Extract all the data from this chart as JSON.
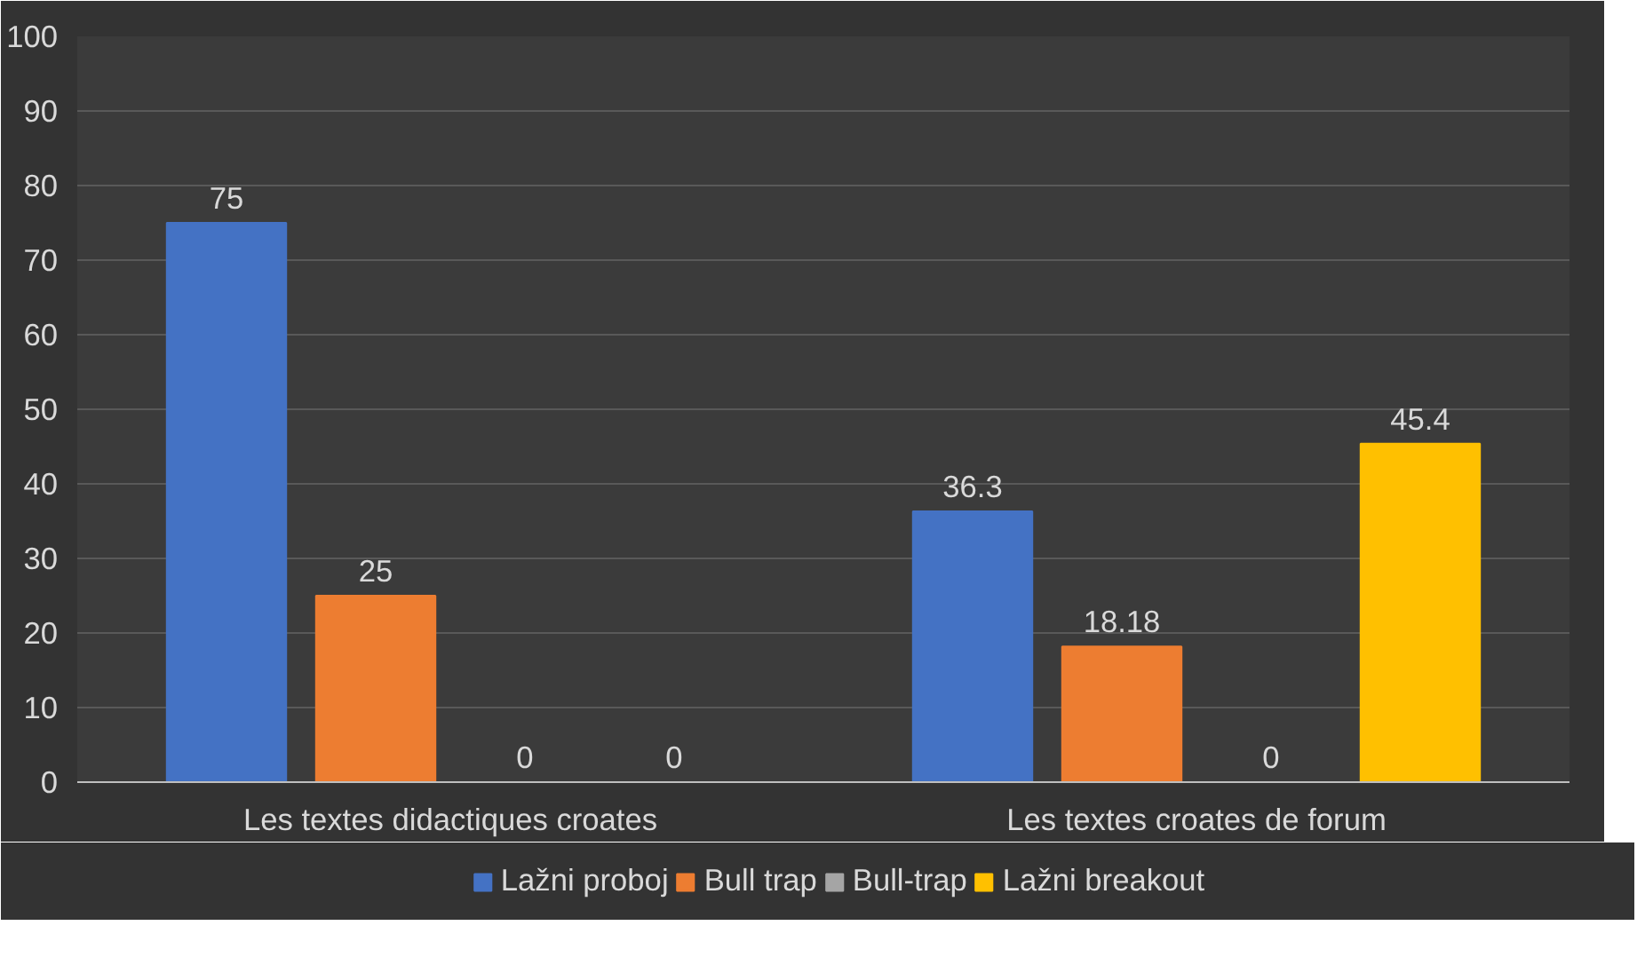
{
  "chart_data": {
    "type": "bar",
    "categories": [
      "Les textes didactiques croates",
      "Les textes croates de forum"
    ],
    "series": [
      {
        "name": "Lažni proboj",
        "color": "#4472c4",
        "values": [
          75,
          36.3
        ]
      },
      {
        "name": "Bull trap",
        "color": "#ed7d31",
        "values": [
          25,
          18.18
        ]
      },
      {
        "name": "Bull-trap",
        "color": "#a5a5a5",
        "values": [
          0,
          0
        ]
      },
      {
        "name": "Lažni breakout",
        "color": "#ffc000",
        "values": [
          0,
          45.4
        ]
      }
    ],
    "ylim": [
      0,
      100
    ],
    "yticks": [
      0,
      10,
      20,
      30,
      40,
      50,
      60,
      70,
      80,
      90,
      100
    ],
    "grid": "y",
    "legend": "bottom",
    "data_labels": true
  }
}
